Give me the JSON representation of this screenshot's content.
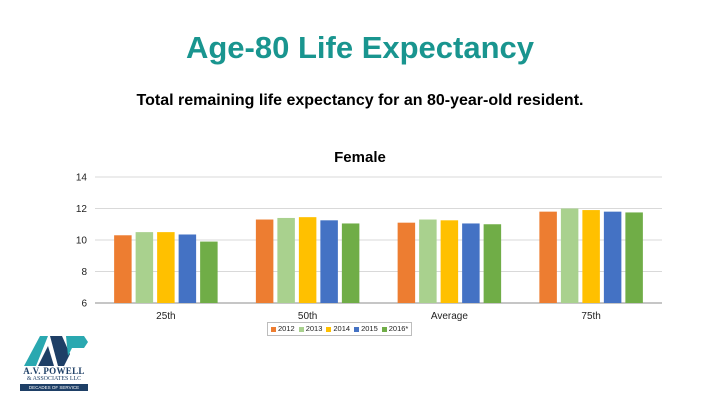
{
  "slide": {
    "title": "Age-80 Life Expectancy",
    "subtitle": "Total remaining life expectancy for an 80-year-old resident."
  },
  "logo": {
    "line1": "A.V. POWELL",
    "line2": "& ASSOCIATES LLC",
    "line3": "DECADES OF SERVICE",
    "colors": {
      "navy": "#1e3f66",
      "teal": "#2aa8b0"
    }
  },
  "chart_data": {
    "type": "bar",
    "title": "Female",
    "xlabel": "",
    "ylabel": "",
    "categories": [
      "25th",
      "50th",
      "Average",
      "75th"
    ],
    "ylim": [
      6,
      14
    ],
    "yticks": [
      6,
      8,
      10,
      12,
      14
    ],
    "grid": true,
    "legend_position": "bottom",
    "series": [
      {
        "name": "2012",
        "color": "#ed7d31",
        "values": [
          10.3,
          11.3,
          11.1,
          11.8
        ]
      },
      {
        "name": "2013",
        "color": "#a9d18e",
        "values": [
          10.5,
          11.4,
          11.3,
          12.0
        ]
      },
      {
        "name": "2014",
        "color": "#ffc000",
        "values": [
          10.5,
          11.45,
          11.25,
          11.9
        ]
      },
      {
        "name": "2015",
        "color": "#4472c4",
        "values": [
          10.35,
          11.25,
          11.05,
          11.8
        ]
      },
      {
        "name": "2016*",
        "color": "#70ad47",
        "values": [
          9.9,
          11.05,
          11.0,
          11.75
        ]
      }
    ]
  }
}
